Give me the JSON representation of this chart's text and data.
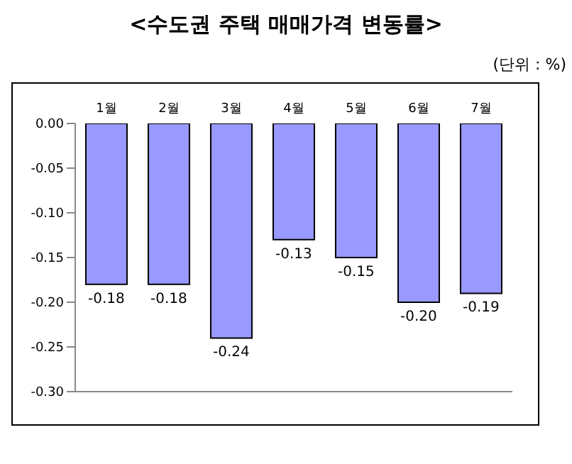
{
  "chart_data": {
    "type": "bar",
    "title": "<수도권 주택 매매가격 변동률>",
    "subtitle": "(단위 : %)",
    "categories": [
      "1월",
      "2월",
      "3월",
      "4월",
      "5월",
      "6월",
      "7월"
    ],
    "values": [
      -0.18,
      -0.18,
      -0.24,
      -0.13,
      -0.15,
      -0.2,
      -0.19
    ],
    "value_labels": [
      "-0.18",
      "-0.18",
      "-0.24",
      "-0.13",
      "-0.15",
      "-0.20",
      "-0.19"
    ],
    "color": "#9999ff",
    "ylim": [
      -0.3,
      0
    ],
    "yticks": [
      {
        "value": 0,
        "label": "0.00"
      },
      {
        "value": -0.05,
        "label": "-0.05"
      },
      {
        "value": -0.1,
        "label": "-0.10"
      },
      {
        "value": -0.15,
        "label": "-0.15"
      },
      {
        "value": -0.2,
        "label": "-0.20"
      },
      {
        "value": -0.25,
        "label": "-0.25"
      },
      {
        "value": -0.3,
        "label": "-0.30"
      }
    ],
    "grid": false
  }
}
